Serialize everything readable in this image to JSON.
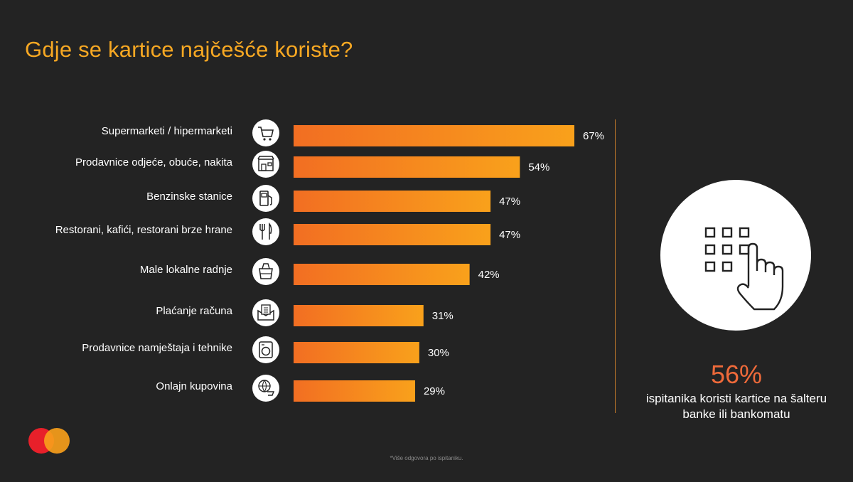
{
  "title": "Gdje se kartice najčešće koriste?",
  "colors": {
    "background": "#232323",
    "title": "#f7a823",
    "bar_start": "#f26e22",
    "bar_end": "#f9a11b",
    "accent_pct": "#ef6a3a",
    "divider": "#c47a2a"
  },
  "chart_data": {
    "type": "bar",
    "orientation": "horizontal",
    "categories": [
      "Supermarketi / hipermarketi",
      "Prodavnice odjeće, obuće, nakita",
      "Benzinske stanice",
      "Restorani, kafići, restorani brze hrane",
      "Male lokalne radnje",
      "Plaćanje računa",
      "Prodavnice namještaja i tehnike",
      "Onlajn kupovina"
    ],
    "values": [
      67,
      54,
      47,
      47,
      42,
      31,
      30,
      29
    ],
    "value_labels": [
      "67%",
      "54%",
      "47%",
      "47%",
      "42%",
      "31%",
      "30%",
      "29%"
    ],
    "icons": [
      "cart-icon",
      "shop-icon",
      "fuel-pump-icon",
      "cutlery-icon",
      "groceries-icon",
      "bill-envelope-icon",
      "washing-machine-icon",
      "online-cart-icon"
    ],
    "xlim": [
      0,
      67
    ],
    "grid": false,
    "legend": "none"
  },
  "side_panel": {
    "icon": "keypad-touch-icon",
    "percentage": "56%",
    "text": "ispitanika koristi kartice na šalteru banke ili bankomatu"
  },
  "footnote": "*Više odgovora po ispitaniku.",
  "logo": "mastercard-logo"
}
